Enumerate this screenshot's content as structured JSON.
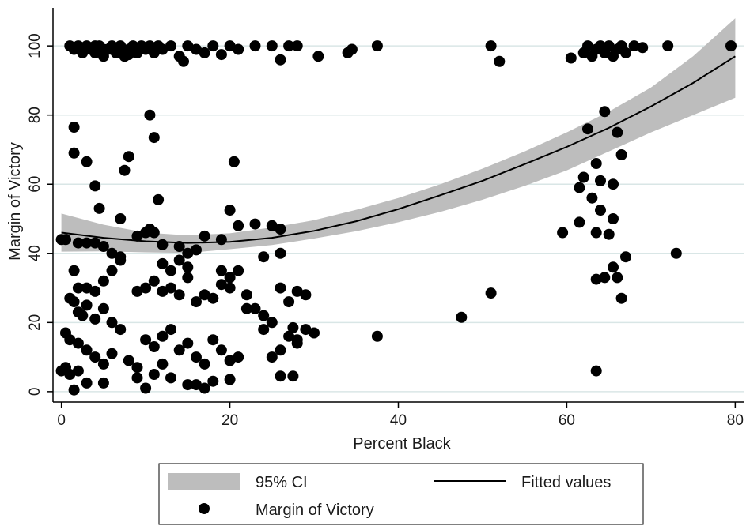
{
  "chart_data": {
    "type": "scatter",
    "title": "",
    "xlabel": "Percent Black",
    "ylabel": "Margin of Victory",
    "xlim": [
      -1,
      81
    ],
    "ylim": [
      -3,
      111
    ],
    "x_ticks": [
      0,
      20,
      40,
      60,
      80
    ],
    "y_ticks": [
      0,
      20,
      40,
      60,
      80,
      100
    ],
    "x_tick_labels": [
      "0",
      "20",
      "40",
      "60",
      "80"
    ],
    "y_tick_labels": [
      "0",
      "20",
      "40",
      "60",
      "80",
      "100"
    ],
    "grid": "horizontal",
    "legend_position": "bottom",
    "colors": {
      "ci_band": "#bdbdbd",
      "fit_line": "#000000",
      "points": "#000000",
      "grid": "#d9e6e6"
    },
    "series": [
      {
        "name": "95% CI",
        "type": "band",
        "x": [
          0,
          5,
          10,
          15,
          20,
          25,
          30,
          35,
          40,
          45,
          50,
          55,
          60,
          65,
          70,
          75,
          80
        ],
        "lower": [
          40.5,
          40.6,
          40.3,
          40.1,
          41.2,
          42.4,
          44.3,
          46.4,
          49.0,
          52.0,
          55.5,
          59.5,
          64.0,
          69.5,
          75.0,
          80.0,
          85.0
        ],
        "upper": [
          51.5,
          48.3,
          46.0,
          45.2,
          45.8,
          47.5,
          49.6,
          52.6,
          56.0,
          60.0,
          64.5,
          69.5,
          75.0,
          81.0,
          88.0,
          97.0,
          108.0
        ]
      },
      {
        "name": "Fitted values",
        "type": "line",
        "x": [
          0,
          5,
          10,
          15,
          20,
          25,
          30,
          35,
          40,
          45,
          50,
          55,
          60,
          65,
          70,
          75,
          80
        ],
        "y": [
          46.0,
          44.5,
          43.5,
          43.0,
          43.3,
          44.5,
          46.5,
          49.3,
          52.8,
          56.8,
          61.0,
          65.8,
          70.8,
          76.3,
          82.5,
          89.3,
          97.0
        ]
      },
      {
        "name": "Margin of Victory",
        "type": "scatter",
        "points": [
          [
            1,
            100
          ],
          [
            1.5,
            99
          ],
          [
            2,
            100
          ],
          [
            2.5,
            98
          ],
          [
            3,
            100
          ],
          [
            3.5,
            99
          ],
          [
            4,
            98
          ],
          [
            4.5,
            100
          ],
          [
            5,
            97
          ],
          [
            5.5,
            99
          ],
          [
            6,
            100
          ],
          [
            6.5,
            98
          ],
          [
            7,
            100
          ],
          [
            7.5,
            97
          ],
          [
            8,
            99
          ],
          [
            8.5,
            100
          ],
          [
            9,
            98
          ],
          [
            9.5,
            100
          ],
          [
            10,
            99
          ],
          [
            10.5,
            100
          ],
          [
            11,
            98
          ],
          [
            11.5,
            100
          ],
          [
            12,
            99
          ],
          [
            13,
            100
          ],
          [
            14,
            97
          ],
          [
            14.5,
            95.5
          ],
          [
            15,
            100
          ],
          [
            16,
            99
          ],
          [
            17,
            98
          ],
          [
            18,
            100
          ],
          [
            19,
            97.5
          ],
          [
            20,
            100
          ],
          [
            21,
            99
          ],
          [
            23,
            100
          ],
          [
            25,
            100
          ],
          [
            26,
            96
          ],
          [
            27,
            100
          ],
          [
            28,
            100
          ],
          [
            30.5,
            97
          ],
          [
            34,
            98
          ],
          [
            34.5,
            99
          ],
          [
            37.5,
            100
          ],
          [
            51,
            100
          ],
          [
            52,
            95.5
          ],
          [
            60.5,
            96.5
          ],
          [
            62,
            98
          ],
          [
            62.5,
            100
          ],
          [
            63,
            97
          ],
          [
            63.5,
            99
          ],
          [
            64,
            100
          ],
          [
            64.5,
            98
          ],
          [
            65,
            100
          ],
          [
            65.5,
            97
          ],
          [
            66,
            99
          ],
          [
            66.5,
            100
          ],
          [
            67,
            98
          ],
          [
            68,
            100
          ],
          [
            69,
            99.5
          ],
          [
            72,
            100
          ],
          [
            79.5,
            100
          ],
          [
            5,
            99
          ],
          [
            7,
            98
          ],
          [
            3,
            99.5
          ],
          [
            4,
            100
          ],
          [
            6,
            99
          ],
          [
            8,
            97.5
          ],
          [
            1.5,
            69
          ],
          [
            1.5,
            76.5
          ],
          [
            3,
            66.5
          ],
          [
            4,
            59.5
          ],
          [
            4.5,
            53
          ],
          [
            7,
            50
          ],
          [
            7.5,
            64
          ],
          [
            8,
            68
          ],
          [
            10.5,
            80
          ],
          [
            11,
            73.5
          ],
          [
            11.5,
            55.5
          ],
          [
            20.5,
            66.5
          ],
          [
            0,
            44
          ],
          [
            0.5,
            44
          ],
          [
            2,
            43
          ],
          [
            3,
            43
          ],
          [
            4,
            43
          ],
          [
            5,
            42
          ],
          [
            6,
            40
          ],
          [
            7,
            39
          ],
          [
            9,
            45
          ],
          [
            10,
            46
          ],
          [
            10.5,
            47
          ],
          [
            11,
            46
          ],
          [
            12,
            42.5
          ],
          [
            14,
            42
          ],
          [
            15,
            40
          ],
          [
            16,
            41
          ],
          [
            17,
            45
          ],
          [
            19,
            44
          ],
          [
            20,
            52.5
          ],
          [
            21,
            48
          ],
          [
            23,
            48.5
          ],
          [
            24,
            39
          ],
          [
            25,
            48
          ],
          [
            26,
            47
          ],
          [
            26,
            40
          ],
          [
            1.5,
            35
          ],
          [
            2,
            30
          ],
          [
            3,
            30
          ],
          [
            4,
            29
          ],
          [
            5,
            32
          ],
          [
            6,
            35
          ],
          [
            7,
            38
          ],
          [
            2,
            23
          ],
          [
            2.5,
            22
          ],
          [
            3,
            25
          ],
          [
            1,
            27
          ],
          [
            1.5,
            26
          ],
          [
            4,
            21
          ],
          [
            5,
            24
          ],
          [
            6,
            20
          ],
          [
            7,
            18
          ],
          [
            9,
            29
          ],
          [
            10,
            30
          ],
          [
            11,
            32
          ],
          [
            12,
            29
          ],
          [
            13,
            30
          ],
          [
            14,
            28
          ],
          [
            15,
            33
          ],
          [
            16,
            26
          ],
          [
            17,
            28
          ],
          [
            18,
            27
          ],
          [
            19,
            31
          ],
          [
            20,
            33
          ],
          [
            21,
            35
          ],
          [
            22,
            28
          ],
          [
            23,
            24
          ],
          [
            24,
            22
          ],
          [
            25,
            20
          ],
          [
            26,
            30
          ],
          [
            27,
            26
          ],
          [
            28,
            29
          ],
          [
            29,
            28
          ],
          [
            0.5,
            17
          ],
          [
            1,
            15
          ],
          [
            2,
            14
          ],
          [
            3,
            12
          ],
          [
            4,
            10
          ],
          [
            5,
            8
          ],
          [
            6,
            11
          ],
          [
            8,
            9
          ],
          [
            9,
            7
          ],
          [
            10,
            15
          ],
          [
            11,
            13
          ],
          [
            12,
            16
          ],
          [
            13,
            18
          ],
          [
            14,
            12
          ],
          [
            15,
            14
          ],
          [
            16,
            10
          ],
          [
            17,
            8
          ],
          [
            18,
            15
          ],
          [
            19,
            12
          ],
          [
            20,
            3.5
          ],
          [
            21,
            10
          ],
          [
            25,
            10
          ],
          [
            27,
            16
          ],
          [
            28,
            14
          ],
          [
            29,
            18
          ],
          [
            30,
            17
          ],
          [
            37.5,
            16
          ],
          [
            47.5,
            21.5
          ],
          [
            51,
            28.5
          ],
          [
            0,
            6
          ],
          [
            0.5,
            7
          ],
          [
            1,
            5
          ],
          [
            1.5,
            0.5
          ],
          [
            2,
            6
          ],
          [
            3,
            2.5
          ],
          [
            5,
            2.5
          ],
          [
            9,
            4
          ],
          [
            10,
            1
          ],
          [
            11,
            5
          ],
          [
            12,
            8
          ],
          [
            13,
            4
          ],
          [
            15,
            2
          ],
          [
            16,
            2
          ],
          [
            17,
            1
          ],
          [
            18,
            3
          ],
          [
            20,
            9
          ],
          [
            26,
            4.5
          ],
          [
            27.5,
            4.5
          ],
          [
            12,
            37
          ],
          [
            13,
            35
          ],
          [
            14,
            38
          ],
          [
            15,
            36
          ],
          [
            19,
            35
          ],
          [
            20,
            30
          ],
          [
            22,
            24
          ],
          [
            24,
            18
          ],
          [
            26,
            12
          ],
          [
            27.5,
            18.5
          ],
          [
            28,
            15
          ],
          [
            59.5,
            46
          ],
          [
            61.5,
            59
          ],
          [
            62,
            62
          ],
          [
            61.5,
            49
          ],
          [
            62.5,
            76
          ],
          [
            63,
            56
          ],
          [
            63.5,
            66
          ],
          [
            64,
            61
          ],
          [
            64,
            52.5
          ],
          [
            63.5,
            46
          ],
          [
            64.5,
            81
          ],
          [
            65,
            45.5
          ],
          [
            65.5,
            60
          ],
          [
            65.5,
            50
          ],
          [
            66,
            75
          ],
          [
            66.5,
            68.5
          ],
          [
            65.5,
            36
          ],
          [
            66,
            33
          ],
          [
            64.5,
            33
          ],
          [
            63.5,
            32.5
          ],
          [
            66.5,
            27
          ],
          [
            67,
            39
          ],
          [
            73,
            40
          ],
          [
            63.5,
            6
          ]
        ]
      }
    ]
  },
  "legend": {
    "ci_label": "95% CI",
    "fit_label": "Fitted values",
    "points_label": "Margin of Victory"
  }
}
